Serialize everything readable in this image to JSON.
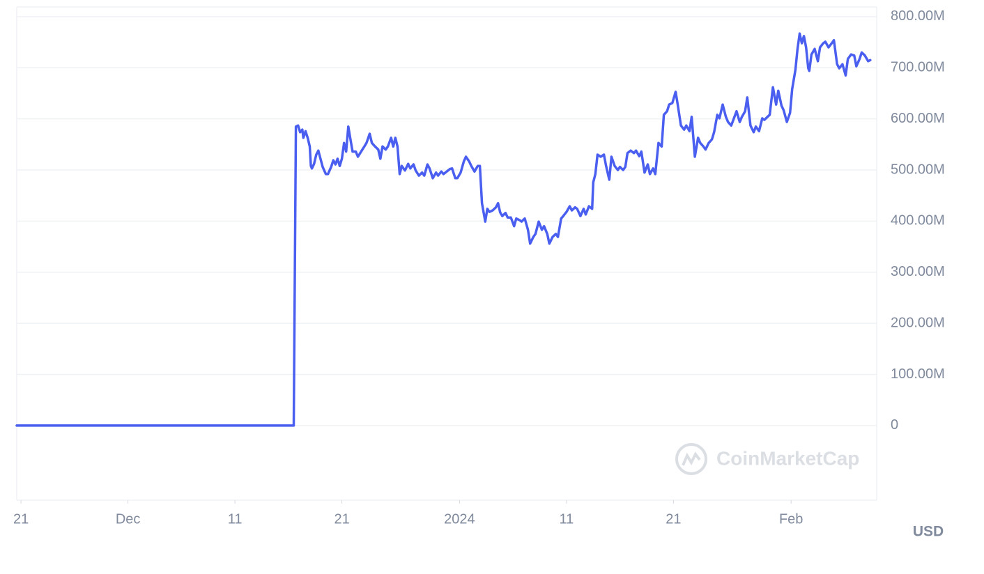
{
  "chart_data": {
    "type": "line",
    "color": "#4a5ff0",
    "grid": true,
    "watermark": "CoinMarketCap",
    "currency_label": "USD",
    "xlim": [
      -0.4,
      80
    ],
    "ylim": [
      -146000000.0,
      819000000.0
    ],
    "xticks": [
      {
        "value": 0,
        "label": "21"
      },
      {
        "value": 10,
        "label": "Dec"
      },
      {
        "value": 20,
        "label": "11"
      },
      {
        "value": 30,
        "label": "21"
      },
      {
        "value": 41,
        "label": "2024"
      },
      {
        "value": 51,
        "label": "11"
      },
      {
        "value": 61,
        "label": "21"
      },
      {
        "value": 72,
        "label": "Feb"
      }
    ],
    "yticks": [
      0,
      {
        "value": 100000000.0,
        "label": "100.00M"
      },
      {
        "value": 200000000.0,
        "label": "200.00M"
      },
      {
        "value": 300000000.0,
        "label": "300.00M"
      },
      {
        "value": 400000000.0,
        "label": "400.00M"
      },
      {
        "value": 500000000.0,
        "label": "500.00M"
      },
      {
        "value": 600000000.0,
        "label": "600.00M"
      },
      {
        "value": 700000000.0,
        "label": "700.00M"
      },
      {
        "value": 800000000.0,
        "label": "800.00M"
      }
    ],
    "x": [
      -0.4,
      25.5,
      25.7,
      25.9,
      26.1,
      26.3,
      26.4,
      26.6,
      26.8,
      27.0,
      27.1,
      27.2,
      27.4,
      27.6,
      27.8,
      28.0,
      28.2,
      28.5,
      28.7,
      29.0,
      29.2,
      29.4,
      29.6,
      29.8,
      30.0,
      30.2,
      30.4,
      30.6,
      30.8,
      31.0,
      31.3,
      31.5,
      31.8,
      32.1,
      32.3,
      32.6,
      32.8,
      33.1,
      33.4,
      33.6,
      33.8,
      34.1,
      34.3,
      34.6,
      34.8,
      35.0,
      35.2,
      35.4,
      35.6,
      35.9,
      36.2,
      36.4,
      36.7,
      36.9,
      37.2,
      37.5,
      37.7,
      38.0,
      38.2,
      38.5,
      38.8,
      39.0,
      39.3,
      39.5,
      39.8,
      40.1,
      40.3,
      40.6,
      40.8,
      41.1,
      41.4,
      41.6,
      41.9,
      42.1,
      42.4,
      42.7,
      42.9,
      43.1,
      43.4,
      43.6,
      43.8,
      44.1,
      44.4,
      44.6,
      44.8,
      45.0,
      45.3,
      45.5,
      45.8,
      46.1,
      46.3,
      46.6,
      46.8,
      47.1,
      47.4,
      47.6,
      47.9,
      48.1,
      48.4,
      48.7,
      48.9,
      49.2,
      49.4,
      49.7,
      50.0,
      50.2,
      50.5,
      50.7,
      51.0,
      51.3,
      51.5,
      51.8,
      52.0,
      52.3,
      52.6,
      52.8,
      53.1,
      53.4,
      53.5,
      53.7,
      53.9,
      54.2,
      54.5,
      54.7,
      55.0,
      55.2,
      55.5,
      55.8,
      56.0,
      56.3,
      56.5,
      56.7,
      57.0,
      57.3,
      57.5,
      57.8,
      58.0,
      58.3,
      58.6,
      58.8,
      59.1,
      59.3,
      59.6,
      59.9,
      60.1,
      60.4,
      60.6,
      60.9,
      61.2,
      61.4,
      61.7,
      62.0,
      62.2,
      62.5,
      62.7,
      63.0,
      63.3,
      63.5,
      63.8,
      64.0,
      64.3,
      64.6,
      64.8,
      65.1,
      65.3,
      65.6,
      65.9,
      66.1,
      66.4,
      66.6,
      66.9,
      67.2,
      67.4,
      67.7,
      67.9,
      68.2,
      68.5,
      68.7,
      69.0,
      69.3,
      69.5,
      69.8,
      70.0,
      70.3,
      70.6,
      70.8,
      71.1,
      71.3,
      71.6,
      71.9,
      72.1,
      72.4,
      72.6,
      72.8,
      73.0,
      73.2,
      73.4,
      73.6,
      73.7,
      73.9,
      74.2,
      74.5,
      74.7,
      75.0,
      75.2,
      75.5,
      75.8,
      76.0,
      76.3,
      76.5,
      76.8,
      77.1,
      77.3,
      77.6,
      77.9,
      78.1,
      78.4,
      78.6,
      78.9,
      79.2,
      79.4
    ],
    "values": [
      0,
      0,
      585000000.0,
      587000000.0,
      574000000.0,
      579000000.0,
      563000000.0,
      576000000.0,
      563000000.0,
      546000000.0,
      508000000.0,
      503000000.0,
      512000000.0,
      530000000.0,
      538000000.0,
      522000000.0,
      506000000.0,
      492000000.0,
      492000000.0,
      506000000.0,
      519000000.0,
      511000000.0,
      522000000.0,
      508000000.0,
      522000000.0,
      553000000.0,
      536000000.0,
      585000000.0,
      560000000.0,
      536000000.0,
      536000000.0,
      526000000.0,
      536000000.0,
      546000000.0,
      553000000.0,
      571000000.0,
      553000000.0,
      546000000.0,
      540000000.0,
      522000000.0,
      546000000.0,
      540000000.0,
      546000000.0,
      563000000.0,
      546000000.0,
      563000000.0,
      546000000.0,
      492000000.0,
      508000000.0,
      499000000.0,
      512000000.0,
      503000000.0,
      511000000.0,
      499000000.0,
      489000000.0,
      495000000.0,
      489000000.0,
      511000000.0,
      503000000.0,
      484000000.0,
      495000000.0,
      489000000.0,
      497000000.0,
      492000000.0,
      497000000.0,
      502000000.0,
      503000000.0,
      484000000.0,
      484000000.0,
      495000000.0,
      517000000.0,
      526000000.0,
      517000000.0,
      508000000.0,
      497000000.0,
      508000000.0,
      508000000.0,
      435000000.0,
      399000000.0,
      424000000.0,
      418000000.0,
      421000000.0,
      427000000.0,
      435000000.0,
      417000000.0,
      410000000.0,
      416000000.0,
      407000000.0,
      407000000.0,
      390000000.0,
      405000000.0,
      402000000.0,
      399000000.0,
      405000000.0,
      383000000.0,
      356000000.0,
      369000000.0,
      375000000.0,
      399000000.0,
      383000000.0,
      390000000.0,
      375000000.0,
      356000000.0,
      369000000.0,
      375000000.0,
      369000000.0,
      405000000.0,
      410000000.0,
      418000000.0,
      429000000.0,
      421000000.0,
      427000000.0,
      424000000.0,
      410000000.0,
      424000000.0,
      413000000.0,
      429000000.0,
      424000000.0,
      476000000.0,
      492000000.0,
      530000000.0,
      526000000.0,
      530000000.0,
      508000000.0,
      481000000.0,
      526000000.0,
      508000000.0,
      500000000.0,
      506000000.0,
      500000000.0,
      506000000.0,
      533000000.0,
      538000000.0,
      533000000.0,
      538000000.0,
      527000000.0,
      536000000.0,
      495000000.0,
      511000000.0,
      492000000.0,
      503000000.0,
      492000000.0,
      553000000.0,
      546000000.0,
      608000000.0,
      615000000.0,
      628000000.0,
      631000000.0,
      653000000.0,
      628000000.0,
      587000000.0,
      579000000.0,
      587000000.0,
      576000000.0,
      604000000.0,
      526000000.0,
      563000000.0,
      553000000.0,
      546000000.0,
      540000000.0,
      553000000.0,
      560000000.0,
      574000000.0,
      608000000.0,
      601000000.0,
      628000000.0,
      604000000.0,
      594000000.0,
      587000000.0,
      598000000.0,
      615000000.0,
      594000000.0,
      604000000.0,
      615000000.0,
      642000000.0,
      587000000.0,
      574000000.0,
      585000000.0,
      576000000.0,
      601000000.0,
      598000000.0,
      604000000.0,
      608000000.0,
      662000000.0,
      628000000.0,
      655000000.0,
      626000000.0,
      617000000.0,
      594000000.0,
      612000000.0,
      658000000.0,
      696000000.0,
      737000000.0,
      767000000.0,
      748000000.0,
      762000000.0,
      740000000.0,
      699000000.0,
      694000000.0,
      726000000.0,
      737000000.0,
      713000000.0,
      740000000.0,
      748000000.0,
      751000000.0,
      740000000.0,
      748000000.0,
      754000000.0,
      707000000.0,
      699000000.0,
      707000000.0,
      685000000.0,
      717000000.0,
      726000000.0,
      724000000.0,
      703000000.0,
      717000000.0,
      730000000.0,
      724000000.0,
      713000000.0,
      715000000.0
    ]
  }
}
